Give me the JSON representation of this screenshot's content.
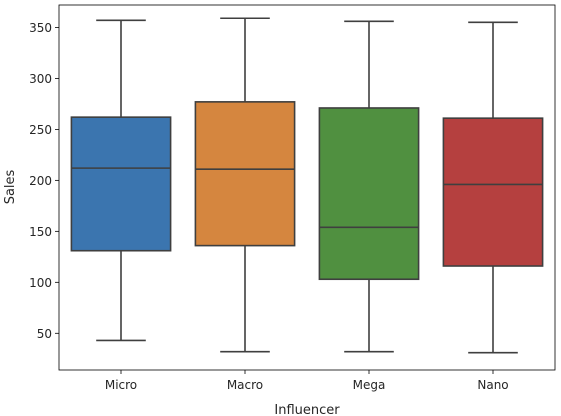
{
  "chart_data": {
    "type": "box",
    "title": "",
    "xlabel": "Influencer",
    "ylabel": "Sales",
    "ylim": [
      14,
      372
    ],
    "yticks": [
      50,
      100,
      150,
      200,
      250,
      300,
      350
    ],
    "grid": false,
    "legend": "none",
    "categories": [
      "Micro",
      "Macro",
      "Mega",
      "Nano"
    ],
    "colors": [
      "#3b75af",
      "#d5863f",
      "#509040",
      "#b5403f"
    ],
    "boxes": [
      {
        "category": "Micro",
        "whisker_low": 43,
        "q1": 131,
        "median": 212,
        "q3": 262,
        "whisker_high": 357
      },
      {
        "category": "Macro",
        "whisker_low": 32,
        "q1": 136,
        "median": 211,
        "q3": 277,
        "whisker_high": 359
      },
      {
        "category": "Mega",
        "whisker_low": 32,
        "q1": 103,
        "median": 154,
        "q3": 271,
        "whisker_high": 356
      },
      {
        "category": "Nano",
        "whisker_low": 31,
        "q1": 116,
        "median": 196,
        "q3": 261,
        "whisker_high": 355
      }
    ]
  }
}
